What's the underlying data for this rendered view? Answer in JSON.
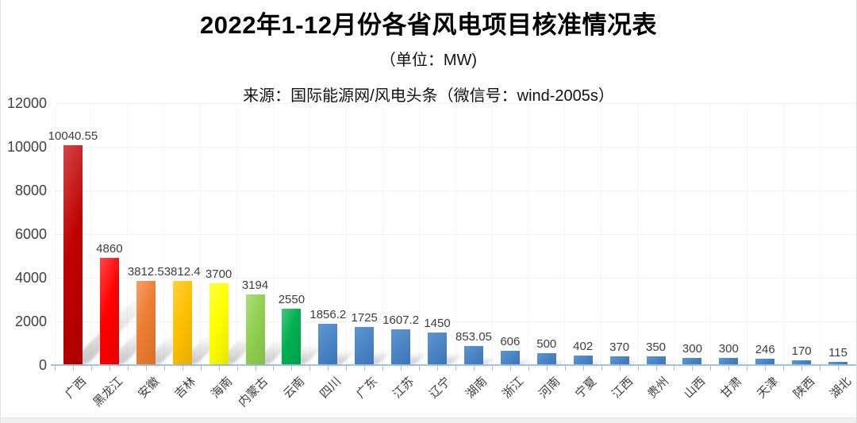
{
  "page": {
    "title": "2022年1-12月份各省风电项目核准情况表",
    "subtitle": "（单位：MW)",
    "source": "来源：国际能源网/风电头条（微信号：wind-2005s）"
  },
  "chart_data": {
    "type": "bar",
    "title": "2022年1-12月份各省风电项目核准情况表",
    "unit": "MW",
    "categories": [
      "广西",
      "黑龙江",
      "安徽",
      "吉林",
      "海南",
      "内蒙古",
      "云南",
      "四川",
      "广东",
      "江苏",
      "辽宁",
      "湖南",
      "浙江",
      "河南",
      "宁夏",
      "江西",
      "贵州",
      "山西",
      "甘肃",
      "天津",
      "陕西",
      "湖北"
    ],
    "values": [
      10040.55,
      4860,
      3812.5,
      3812.4,
      3700,
      3194,
      2550,
      1856.2,
      1725,
      1607.2,
      1450,
      853.05,
      606,
      500,
      402,
      370,
      350,
      300,
      300,
      246,
      170,
      115
    ],
    "value_labels": [
      "10040.55",
      "4860",
      "3812.5",
      "3812.4",
      "3700",
      "3194",
      "2550",
      "1856.2",
      "1725",
      "1607.2",
      "1450",
      "853.05",
      "606",
      "500",
      "402",
      "370",
      "350",
      "300",
      "300",
      "246",
      "170",
      "115"
    ],
    "bar_colors": [
      "#C00000",
      "#FF0000",
      "#ED7D31",
      "#FFC000",
      "#FFFF00",
      "#92D050",
      "#00B050",
      "#4583C4",
      "#4583C4",
      "#4583C4",
      "#4583C4",
      "#4583C4",
      "#4583C4",
      "#4583C4",
      "#4583C4",
      "#4583C4",
      "#4583C4",
      "#4583C4",
      "#4583C4",
      "#4583C4",
      "#4583C4",
      "#4583C4"
    ],
    "blue_gradient": [
      "#5D96D2",
      "#3B74B8"
    ],
    "ylim": [
      0,
      12000
    ],
    "y_ticks": [
      0,
      2000,
      4000,
      6000,
      8000,
      10000,
      12000
    ],
    "grid": true,
    "axis_color": "#9DC3E6",
    "legend": "none",
    "xlabel": "",
    "ylabel": ""
  }
}
